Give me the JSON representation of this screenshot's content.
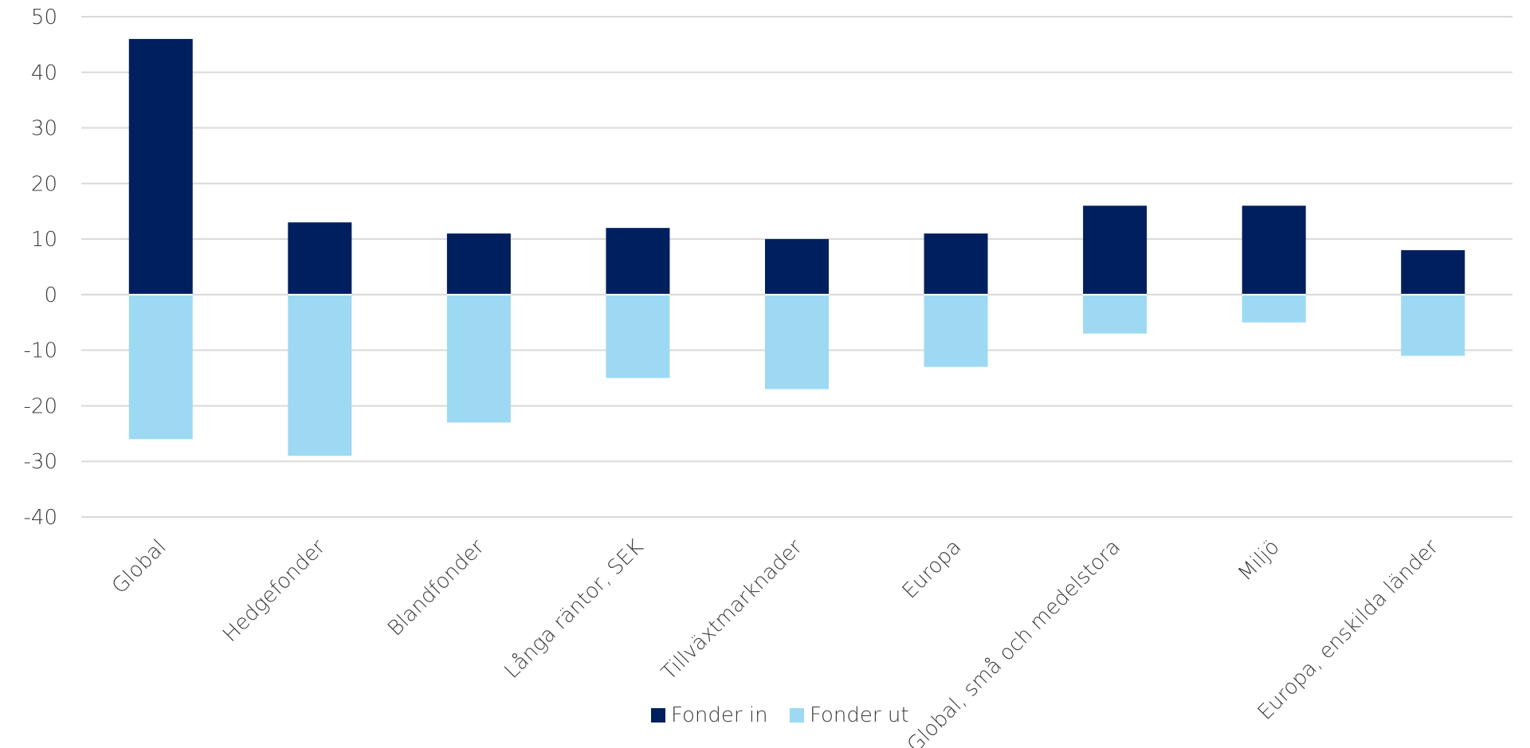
{
  "chart_data": {
    "type": "bar",
    "stacked": true,
    "categories": [
      "Global",
      "Hedgefonder",
      "Blandfonder",
      "Långa räntor, SEK",
      "Tillväxtmarknader",
      "Europa",
      "Global, små och medelstora",
      "Miljö",
      "Europa, enskilda länder"
    ],
    "series": [
      {
        "name": "Fonder in",
        "color": "#001f5f",
        "values": [
          46,
          13,
          11,
          12,
          10,
          11,
          16,
          16,
          8
        ]
      },
      {
        "name": "Fonder ut",
        "color": "#9dd9f3",
        "values": [
          -26,
          -29,
          -23,
          -15,
          -17,
          -13,
          -7,
          -5,
          -11
        ]
      }
    ],
    "ylim": [
      -40,
      50
    ],
    "yticks": [
      50,
      40,
      30,
      20,
      10,
      0,
      -10,
      -20,
      -30,
      -40
    ],
    "ytick_labels": [
      "50",
      "40",
      "30",
      "20",
      "10",
      "0",
      "-10",
      "-20",
      "-30",
      "-40"
    ],
    "title": "",
    "xlabel": "",
    "ylabel": "",
    "grid": true,
    "legend_position": "bottom-center"
  }
}
